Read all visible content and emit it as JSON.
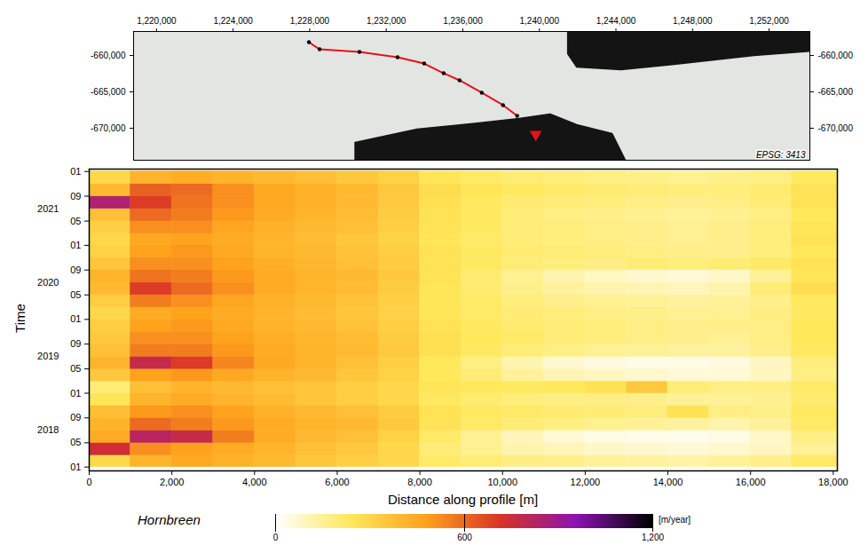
{
  "chart_data": [
    {
      "type": "map",
      "text": "EPSG: 3413",
      "xlim": [
        1218800,
        1254130
      ],
      "ylim": [
        -674400,
        -656700
      ],
      "xticks": [
        {
          "value": 1220000,
          "label": "1,220,000"
        },
        {
          "value": 1224000,
          "label": "1,224,000"
        },
        {
          "value": 1228000,
          "label": "1,228,000"
        },
        {
          "value": 1232000,
          "label": "1,232,000"
        },
        {
          "value": 1236000,
          "label": "1,236,000"
        },
        {
          "value": 1240000,
          "label": "1,240,000"
        },
        {
          "value": 1244000,
          "label": "1,244,000"
        },
        {
          "value": 1248000,
          "label": "1,248,000"
        },
        {
          "value": 1252000,
          "label": "1,252,000"
        }
      ],
      "yticks": [
        {
          "value": -660000,
          "label": "-660,000"
        },
        {
          "value": -665000,
          "label": "-665,000"
        },
        {
          "value": -670000,
          "label": "-670,000"
        }
      ],
      "profile": {
        "color": "#e8101a",
        "marker": "circle",
        "x": [
          1227960,
          1228520,
          1230600,
          1232590,
          1233980,
          1235000,
          1235830,
          1236990,
          1238100,
          1238840
        ],
        "y": [
          -658170,
          -659150,
          -659510,
          -660240,
          -661100,
          -662440,
          -663410,
          -665120,
          -666830,
          -668290
        ]
      },
      "site": {
        "color": "#e8101a",
        "marker": "triangle",
        "x": 1239810,
        "y": -670850
      },
      "water": [
        [
          [
            1241480,
            -656700
          ],
          [
            1255370,
            -656700
          ],
          [
            1255370,
            -659150
          ],
          [
            1251210,
            -660000
          ],
          [
            1247040,
            -661220
          ],
          [
            1244260,
            -661950
          ],
          [
            1241950,
            -661590
          ],
          [
            1241480,
            -659760
          ]
        ],
        [
          [
            1230370,
            -671960
          ],
          [
            1233610,
            -670130
          ],
          [
            1236850,
            -669270
          ],
          [
            1238940,
            -668660
          ],
          [
            1240560,
            -668050
          ],
          [
            1241950,
            -669520
          ],
          [
            1243800,
            -670740
          ],
          [
            1244490,
            -674400
          ],
          [
            1230370,
            -674400
          ]
        ]
      ]
    },
    {
      "type": "heatmap",
      "title": "Hornbreen",
      "x_label": "Distance along profile [m]",
      "y_label": "Time",
      "xlim": [
        0,
        18100
      ],
      "xticks": [
        0,
        {
          "value": 2000,
          "label": "2,000"
        },
        {
          "value": 4000,
          "label": "4,000"
        },
        {
          "value": 6000,
          "label": "6,000"
        },
        {
          "value": 8000,
          "label": "8,000"
        },
        {
          "value": 10000,
          "label": "10,000"
        },
        {
          "value": 12000,
          "label": "12,000"
        },
        {
          "value": 14000,
          "label": "14,000"
        },
        {
          "value": 16000,
          "label": "16,000"
        },
        {
          "value": 18000,
          "label": "18,000"
        }
      ],
      "ylim": [
        "2017-12-13",
        "2022-01-13"
      ],
      "yticks": [
        {
          "value": "2018-01",
          "label": "01"
        },
        {
          "value": "2018-05",
          "label": "05"
        },
        {
          "value": "2018-09",
          "label": "09"
        },
        {
          "value": "2019-01",
          "label": "01"
        },
        {
          "value": "2019-05",
          "label": "05"
        },
        {
          "value": "2019-09",
          "label": "09"
        },
        {
          "value": "2020-01",
          "label": "01"
        },
        {
          "value": "2020-05",
          "label": "05"
        },
        {
          "value": "2020-09",
          "label": "09"
        },
        {
          "value": "2021-01",
          "label": "01"
        },
        {
          "value": "2021-05",
          "label": "05"
        },
        {
          "value": "2021-09",
          "label": "09"
        },
        {
          "value": "2022-01",
          "label": "01"
        },
        {
          "value": "2018-07",
          "label": "2018"
        },
        {
          "value": "2019-07",
          "label": "2019"
        },
        {
          "value": "2020-07",
          "label": "2020"
        },
        {
          "value": "2021-07",
          "label": "2021"
        }
      ],
      "x_edges": [
        0,
        1000,
        2000,
        3000,
        4000,
        5000,
        6000,
        7000,
        8000,
        9000,
        10000,
        11000,
        12000,
        13000,
        14000,
        15000,
        16000,
        17000,
        18100
      ],
      "time_edges": [
        "2018-01",
        "2018-03",
        "2018-05",
        "2018-07",
        "2018-09",
        "2018-11",
        "2019-01",
        "2019-03",
        "2019-05",
        "2019-07",
        "2019-09",
        "2019-11",
        "2020-01",
        "2020-03",
        "2020-05",
        "2020-07",
        "2020-09",
        "2020-11",
        "2021-01",
        "2021-03",
        "2021-05",
        "2021-07",
        "2021-09",
        "2021-11",
        "2022-01"
      ],
      "values": [
        [
          300,
          420,
          460,
          430,
          400,
          360,
          330,
          300,
          220,
          200,
          180,
          170,
          150,
          140,
          130,
          150,
          170,
          220
        ],
        [
          750,
          520,
          480,
          450,
          420,
          380,
          350,
          300,
          200,
          160,
          120,
          100,
          80,
          70,
          60,
          70,
          90,
          150
        ],
        [
          450,
          820,
          780,
          560,
          450,
          400,
          380,
          320,
          220,
          160,
          100,
          60,
          40,
          30,
          30,
          40,
          80,
          180
        ],
        [
          420,
          600,
          560,
          500,
          450,
          420,
          400,
          350,
          260,
          220,
          200,
          180,
          160,
          150,
          140,
          120,
          150,
          220
        ],
        [
          380,
          500,
          520,
          480,
          430,
          400,
          380,
          340,
          260,
          230,
          220,
          210,
          200,
          190,
          260,
          180,
          170,
          230
        ],
        [
          250,
          420,
          450,
          420,
          390,
          360,
          330,
          300,
          230,
          210,
          190,
          180,
          180,
          170,
          150,
          150,
          160,
          210
        ],
        [
          200,
          380,
          420,
          400,
          380,
          360,
          330,
          300,
          250,
          240,
          230,
          240,
          260,
          350,
          200,
          180,
          180,
          220
        ],
        [
          350,
          480,
          500,
          460,
          420,
          400,
          360,
          320,
          240,
          200,
          150,
          110,
          90,
          70,
          60,
          60,
          90,
          180
        ],
        [
          420,
          780,
          700,
          540,
          460,
          420,
          380,
          330,
          240,
          180,
          120,
          70,
          50,
          40,
          40,
          50,
          90,
          190
        ],
        [
          380,
          560,
          560,
          500,
          450,
          420,
          400,
          350,
          270,
          230,
          200,
          180,
          160,
          150,
          140,
          140,
          170,
          230
        ],
        [
          350,
          520,
          520,
          480,
          440,
          410,
          390,
          340,
          270,
          240,
          220,
          200,
          190,
          180,
          170,
          160,
          180,
          240
        ],
        [
          330,
          480,
          500,
          460,
          420,
          400,
          370,
          330,
          260,
          230,
          210,
          200,
          190,
          180,
          170,
          170,
          180,
          240
        ],
        [
          300,
          450,
          480,
          450,
          420,
          390,
          360,
          320,
          250,
          220,
          200,
          190,
          180,
          170,
          160,
          160,
          180,
          230
        ],
        [
          330,
          560,
          520,
          470,
          430,
          400,
          370,
          330,
          250,
          220,
          190,
          170,
          160,
          150,
          140,
          150,
          170,
          230
        ],
        [
          400,
          700,
          600,
          520,
          450,
          420,
          390,
          340,
          250,
          210,
          170,
          140,
          120,
          110,
          100,
          120,
          200,
          280
        ],
        [
          420,
          580,
          560,
          500,
          450,
          420,
          400,
          350,
          260,
          210,
          160,
          120,
          90,
          70,
          60,
          80,
          150,
          250
        ],
        [
          360,
          520,
          520,
          480,
          440,
          410,
          380,
          340,
          260,
          230,
          200,
          190,
          180,
          200,
          190,
          200,
          220,
          260
        ],
        [
          320,
          480,
          500,
          460,
          420,
          400,
          370,
          330,
          260,
          230,
          210,
          200,
          190,
          180,
          170,
          170,
          190,
          240
        ],
        [
          300,
          460,
          480,
          450,
          420,
          390,
          360,
          320,
          250,
          220,
          200,
          190,
          180,
          170,
          160,
          170,
          190,
          260
        ],
        [
          330,
          520,
          520,
          470,
          430,
          400,
          380,
          330,
          260,
          230,
          200,
          190,
          180,
          170,
          160,
          170,
          190,
          250
        ],
        [
          380,
          600,
          560,
          500,
          450,
          420,
          390,
          340,
          260,
          230,
          200,
          180,
          170,
          160,
          150,
          160,
          180,
          240
        ],
        [
          850,
          700,
          580,
          520,
          460,
          430,
          400,
          350,
          270,
          230,
          210,
          200,
          190,
          180,
          170,
          180,
          200,
          260
        ],
        [
          400,
          620,
          600,
          520,
          460,
          430,
          400,
          350,
          280,
          250,
          230,
          220,
          210,
          200,
          190,
          190,
          210,
          260
        ],
        [
          300,
          420,
          440,
          420,
          400,
          380,
          350,
          320,
          250,
          220,
          200,
          190,
          180,
          170,
          160,
          170,
          180,
          230
        ]
      ],
      "colorbar": {
        "label": "[m/year]",
        "range": [
          0,
          1200
        ],
        "ticks": [
          0,
          600,
          {
            "value": 1200,
            "label": "1,200"
          }
        ]
      }
    }
  ]
}
